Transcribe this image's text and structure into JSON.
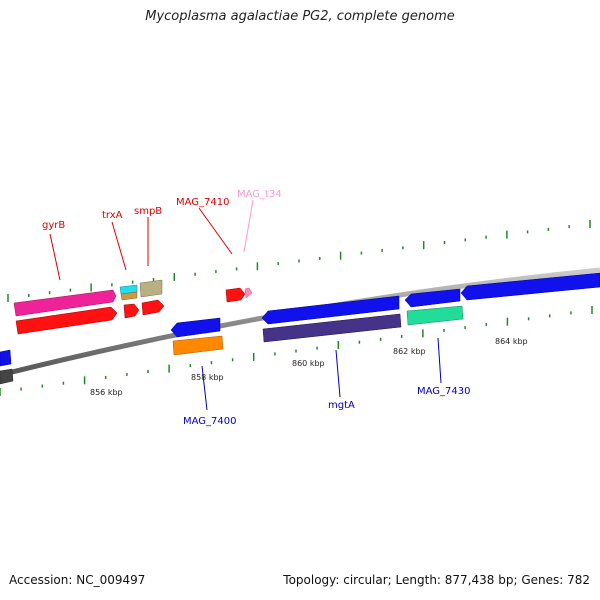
{
  "title": "Mycoplasma agalactiae PG2, complete genome",
  "footer": {
    "accession": "Accession: NC_009497",
    "stats": "Topology: circular; Length: 877,438 bp; Genes: 782"
  },
  "colors": {
    "backbone": "#8a8a8a",
    "forward_label": "#dd0000",
    "reverse_label": "#0000bb",
    "trna_label": "#ff99cc",
    "ticks": "#228822"
  },
  "scale_labels": [
    "856 kbp",
    "858 kbp",
    "860 kbp",
    "862 kbp",
    "864 kbp"
  ],
  "gene_labels": {
    "forward": [
      "gyrB",
      "trxA",
      "smpB",
      "MAG_7410",
      "MAG_t34"
    ],
    "reverse": [
      "MAG_7400",
      "mgtA",
      "MAG_7430"
    ]
  },
  "features": [
    {
      "id": "gyrB",
      "strand": "forward",
      "track": "outer",
      "color": "#ee2299"
    },
    {
      "id": "cds-a",
      "strand": "forward",
      "track": "inner",
      "color": "#ff1111"
    },
    {
      "id": "trxA",
      "strand": "forward",
      "track": "outer",
      "color": "#22ddee"
    },
    {
      "id": "trxA-2",
      "strand": "forward",
      "track": "inner",
      "color": "#cc9944"
    },
    {
      "id": "smpB",
      "strand": "forward",
      "track": "outer",
      "color": "#b8b080"
    },
    {
      "id": "cds-b",
      "strand": "forward",
      "track": "inner",
      "color": "#ff1111"
    },
    {
      "id": "cds-c",
      "strand": "forward",
      "track": "inner",
      "color": "#ff1111"
    },
    {
      "id": "MAG_7410",
      "strand": "forward",
      "track": "inner",
      "color": "#ff1111"
    },
    {
      "id": "MAG_t34",
      "strand": "forward",
      "track": "inner",
      "color": "#ff88bb"
    },
    {
      "id": "MAG_7400",
      "strand": "reverse",
      "track": "inner",
      "color": "#1111ee"
    },
    {
      "id": "cds-d",
      "strand": "reverse",
      "track": "outer",
      "color": "#ff8800"
    },
    {
      "id": "mgtA",
      "strand": "reverse",
      "track": "inner",
      "color": "#1111ee"
    },
    {
      "id": "cds-e",
      "strand": "reverse",
      "track": "outer",
      "color": "#443388"
    },
    {
      "id": "cds-f",
      "strand": "reverse",
      "track": "inner",
      "color": "#1111ee"
    },
    {
      "id": "MAG_7430",
      "strand": "reverse",
      "track": "outer",
      "color": "#22dd99"
    },
    {
      "id": "cds-g",
      "strand": "reverse",
      "track": "inner",
      "color": "#1111ee"
    },
    {
      "id": "cds-h",
      "strand": "reverse",
      "track": "inner",
      "color": "#1111ee"
    },
    {
      "id": "cds-i",
      "strand": "reverse",
      "track": "outer",
      "color": "#444444"
    }
  ]
}
